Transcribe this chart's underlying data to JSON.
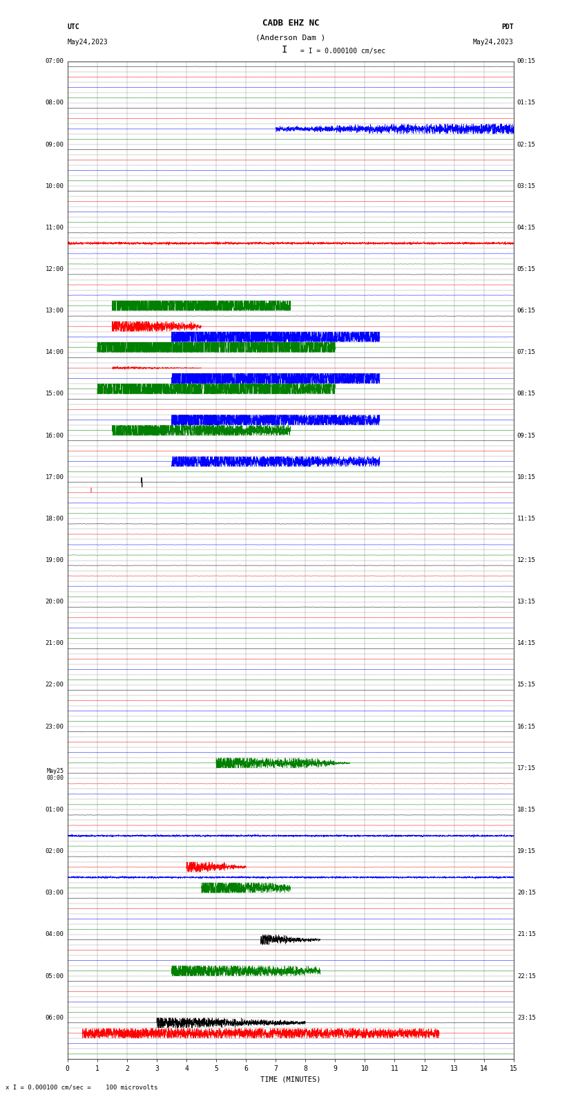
{
  "title_line1": "CADB EHZ NC",
  "title_line2": "(Anderson Dam )",
  "scale_text": "I = 0.000100 cm/sec",
  "utc_label": "UTC",
  "utc_date": "May24,2023",
  "pdt_label": "PDT",
  "pdt_date": "May24,2023",
  "footnote": "x I = 0.000100 cm/sec =    100 microvolts",
  "xlabel": "TIME (MINUTES)",
  "xticks": [
    0,
    1,
    2,
    3,
    4,
    5,
    6,
    7,
    8,
    9,
    10,
    11,
    12,
    13,
    14,
    15
  ],
  "left_times": [
    "07:00",
    "08:00",
    "09:00",
    "10:00",
    "11:00",
    "12:00",
    "13:00",
    "14:00",
    "15:00",
    "16:00",
    "17:00",
    "18:00",
    "19:00",
    "20:00",
    "21:00",
    "22:00",
    "23:00",
    "May25\n00:00",
    "01:00",
    "02:00",
    "03:00",
    "04:00",
    "05:00",
    "06:00"
  ],
  "right_times": [
    "00:15",
    "01:15",
    "02:15",
    "03:15",
    "04:15",
    "05:15",
    "06:15",
    "07:15",
    "08:15",
    "09:15",
    "10:15",
    "11:15",
    "12:15",
    "13:15",
    "14:15",
    "15:15",
    "16:15",
    "17:15",
    "18:15",
    "19:15",
    "20:15",
    "21:15",
    "22:15",
    "23:15"
  ],
  "n_hours": 24,
  "rows_per_hour": 4,
  "trace_colors": [
    "black",
    "red",
    "blue",
    "green"
  ],
  "bg_color": "white",
  "grid_color": "#999999",
  "hour_label_color": "black",
  "base_noise_amp": 0.04,
  "trace_scale": 0.38
}
